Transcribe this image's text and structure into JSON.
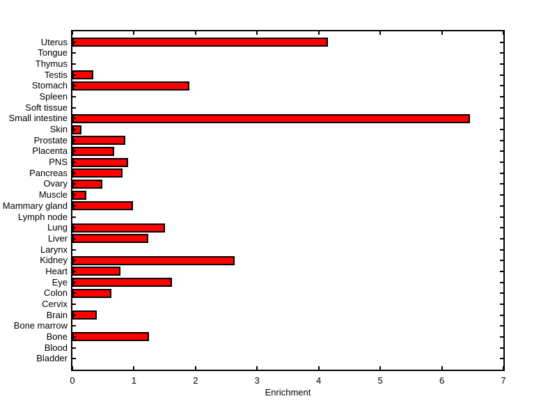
{
  "chart_data": {
    "type": "bar",
    "orientation": "horizontal",
    "title": "",
    "xlabel": "Enrichment",
    "ylabel": "",
    "xlim": [
      0,
      7
    ],
    "xticks": [
      0,
      1,
      2,
      3,
      4,
      5,
      6,
      7
    ],
    "grid": false,
    "legend": "none",
    "category_order": "top-to-bottom",
    "categories": [
      "Uterus",
      "Tongue",
      "Thymus",
      "Testis",
      "Stomach",
      "Spleen",
      "Soft tissue",
      "Small intestine",
      "Skin",
      "Prostate",
      "Placenta",
      "PNS",
      "Pancreas",
      "Ovary",
      "Muscle",
      "Mammary gland",
      "Lymph node",
      "Lung",
      "Liver",
      "Larynx",
      "Kidney",
      "Heart",
      "Eye",
      "Colon",
      "Cervix",
      "Brain",
      "Bone marrow",
      "Bone",
      "Blood",
      "Bladder"
    ],
    "values": [
      4.15,
      0,
      0,
      0.34,
      1.9,
      0,
      0,
      6.46,
      0.15,
      0.86,
      0.68,
      0.91,
      0.81,
      0.49,
      0.23,
      0.98,
      0,
      1.5,
      1.23,
      0,
      2.63,
      0.78,
      1.62,
      0.63,
      0,
      0.4,
      0,
      1.24,
      0,
      0
    ],
    "colors": {
      "bar_fill": "#FF0000",
      "bar_edge": "#000000",
      "axis": "#000000",
      "text": "#000000",
      "background": "#FFFFFF"
    }
  }
}
